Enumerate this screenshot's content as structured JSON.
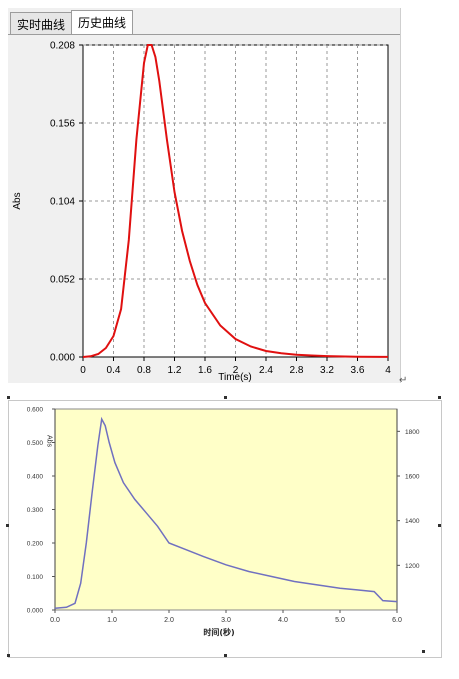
{
  "tabs": [
    {
      "label": "实时曲线",
      "active": false
    },
    {
      "label": "历史曲线",
      "active": true
    }
  ],
  "top_chart": {
    "type": "line",
    "ylabel": "Abs",
    "xlabel": "Time(s)",
    "xlim": [
      0,
      4
    ],
    "ylim": [
      0,
      0.208
    ],
    "x_ticks": [
      0,
      0.4,
      0.8,
      1.2,
      1.6,
      2,
      2.4,
      2.8,
      3.2,
      3.6,
      4
    ],
    "x_tick_labels": [
      "0",
      "0.4",
      "0.8",
      "1.2",
      "1.6",
      "2",
      "2.4",
      "2.8",
      "3.2",
      "3.6",
      "4"
    ],
    "y_ticks": [
      0,
      0.052,
      0.104,
      0.156,
      0.208
    ],
    "y_tick_labels": [
      "0.000",
      "0.052",
      "0.104",
      "0.156",
      "0.208"
    ],
    "grid": true,
    "line_color": "#e01010",
    "series": [
      {
        "x": [
          0,
          0.1,
          0.2,
          0.3,
          0.4,
          0.5,
          0.6,
          0.7,
          0.8,
          0.85,
          0.9,
          0.95,
          1.0,
          1.1,
          1.2,
          1.3,
          1.4,
          1.5,
          1.6,
          1.8,
          2.0,
          2.2,
          2.4,
          2.6,
          2.8,
          3.0,
          3.2,
          3.6,
          4.0
        ],
        "y": [
          0,
          0.0005,
          0.002,
          0.006,
          0.014,
          0.032,
          0.078,
          0.145,
          0.196,
          0.208,
          0.208,
          0.2,
          0.184,
          0.145,
          0.11,
          0.084,
          0.064,
          0.048,
          0.036,
          0.021,
          0.012,
          0.007,
          0.004,
          0.0025,
          0.0015,
          0.001,
          0.0006,
          0.0002,
          0.0001
        ]
      }
    ]
  },
  "bottom_chart": {
    "type": "line",
    "y_axis_title": "Abs",
    "xlabel": "时间(秒)",
    "xlim": [
      0,
      6
    ],
    "ylim": [
      0,
      0.6
    ],
    "y2lim": [
      1000,
      1900
    ],
    "x_ticks": [
      0,
      1,
      2,
      3,
      4,
      5,
      6
    ],
    "x_tick_labels": [
      "0.0",
      "1.0",
      "2.0",
      "3.0",
      "4.0",
      "5.0",
      "6.0"
    ],
    "y_ticks": [
      0,
      0.1,
      0.2,
      0.3,
      0.4,
      0.5,
      0.6
    ],
    "y_tick_labels": [
      "0.000",
      "0.100",
      "0.200",
      "0.300",
      "0.400",
      "0.500",
      "0.600"
    ],
    "y2_ticks": [
      1200,
      1400,
      1600,
      1800
    ],
    "y2_tick_labels": [
      "1200",
      "1400",
      "1600",
      "1800"
    ],
    "plot_background": "#ffffc8",
    "line_color": "#7070c0",
    "series": [
      {
        "x": [
          0,
          0.2,
          0.35,
          0.45,
          0.55,
          0.65,
          0.75,
          0.82,
          0.88,
          0.95,
          1.05,
          1.2,
          1.4,
          1.6,
          1.8,
          2.0,
          2.3,
          2.6,
          3.0,
          3.4,
          3.8,
          4.2,
          4.6,
          5.0,
          5.3,
          5.6,
          5.75,
          6.0
        ],
        "y": [
          0.005,
          0.008,
          0.02,
          0.08,
          0.2,
          0.35,
          0.49,
          0.57,
          0.55,
          0.5,
          0.44,
          0.38,
          0.33,
          0.29,
          0.25,
          0.2,
          0.18,
          0.16,
          0.135,
          0.115,
          0.1,
          0.085,
          0.075,
          0.065,
          0.06,
          0.055,
          0.028,
          0.025
        ]
      }
    ]
  }
}
